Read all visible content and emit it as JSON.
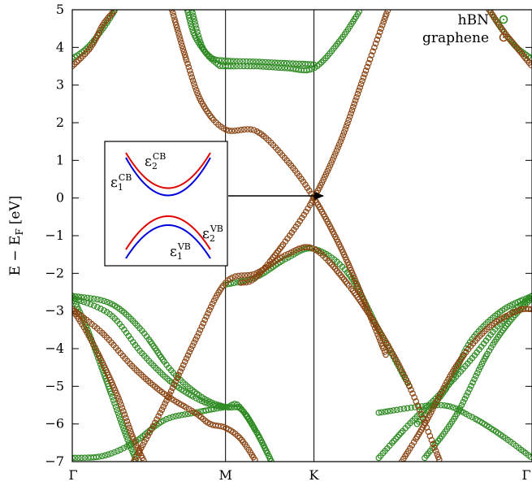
{
  "chart_data": {
    "type": "scatter",
    "ylabel": "E − E",
    "ylabel_sub": "F",
    "ylabel_unit": "[eV]",
    "ylim": [
      -7,
      5
    ],
    "yticks": [
      5,
      4,
      3,
      2,
      1,
      0,
      -1,
      -2,
      -3,
      -4,
      -5,
      -6,
      -7
    ],
    "xlim": [
      0,
      3
    ],
    "xticks": [
      {
        "label": "Γ",
        "x": 0
      },
      {
        "label": "M",
        "x": 1
      },
      {
        "label": "K",
        "x": 1.577
      },
      {
        "label": "Γ",
        "x": 3
      }
    ],
    "legend_position": "top-right",
    "colors": {
      "hBN": "#2e8b22",
      "graphene": "#8b4513",
      "inset_upper": "#e00000",
      "inset_lower": "#0000dd"
    },
    "series": [
      {
        "name": "hBN",
        "bands": [
          {
            "x": [
              0,
              0.25,
              0.45,
              0.65,
              0.85,
              1.0,
              1.1,
              1.2,
              1.3
            ],
            "y": [
              -2.6,
              -2.8,
              -3.5,
              -4.6,
              -5.3,
              -5.55,
              -5.6,
              -6.2,
              -7.0
            ]
          },
          {
            "x": [
              0,
              0.25,
              0.45,
              0.65,
              0.85,
              1.0,
              1.08,
              1.2,
              1.3
            ],
            "y": [
              -2.65,
              -3.1,
              -4.1,
              -4.9,
              -5.4,
              -5.55,
              -5.5,
              -6.2,
              -7.0
            ]
          },
          {
            "x": [
              0,
              0.1,
              0.2,
              0.28,
              0.35,
              0.42
            ],
            "y": [
              -2.6,
              -3.5,
              -4.6,
              -5.5,
              -6.3,
              -7.0
            ]
          },
          {
            "x": [
              0,
              0.2,
              0.4,
              0.6,
              0.8,
              1.0
            ],
            "y": [
              -6.9,
              -6.85,
              -6.5,
              -5.9,
              -5.7,
              -5.55
            ]
          },
          {
            "x": [
              1.0,
              1.2,
              1.4,
              1.577,
              1.8,
              2.0,
              2.2
            ],
            "y": [
              -2.3,
              -2.1,
              -1.6,
              -1.35,
              -2.0,
              -3.5,
              -5.0
            ]
          },
          {
            "x": [
              0.75,
              0.8,
              0.9,
              1.0,
              1.2,
              1.4,
              1.577
            ],
            "y": [
              5.0,
              4.3,
              3.75,
              3.65,
              3.62,
              3.58,
              3.55
            ]
          },
          {
            "x": [
              0.78,
              0.85,
              0.95,
              1.0,
              1.2,
              1.4,
              1.577,
              1.75,
              1.88
            ],
            "y": [
              5.0,
              4.0,
              3.55,
              3.5,
              3.5,
              3.45,
              3.45,
              4.2,
              5.0
            ]
          },
          {
            "x": [
              0,
              0.1,
              0.2,
              0.28
            ],
            "y": [
              3.7,
              4.0,
              4.5,
              5.0
            ]
          },
          {
            "x": [
              2.72,
              2.8,
              2.9,
              3.0
            ],
            "y": [
              5.0,
              4.5,
              4.0,
              3.7
            ]
          },
          {
            "x": [
              2.0,
              2.2,
              2.4,
              2.6,
              2.8,
              3.0
            ],
            "y": [
              -6.9,
              -6.0,
              -5.2,
              -4.3,
              -3.3,
              -2.6
            ]
          },
          {
            "x": [
              2.3,
              2.5,
              2.7,
              2.85,
              3.0
            ],
            "y": [
              -6.9,
              -5.8,
              -4.2,
              -3.3,
              -2.65
            ]
          },
          {
            "x": [
              2.25,
              2.45,
              2.6,
              2.8,
              3.0
            ],
            "y": [
              -6.0,
              -5.0,
              -3.8,
              -3.0,
              -2.6
            ]
          },
          {
            "x": [
              2.0,
              2.4,
              2.6,
              2.8,
              3.0
            ],
            "y": [
              -5.7,
              -5.5,
              -5.8,
              -6.3,
              -6.9
            ]
          }
        ]
      },
      {
        "name": "graphene",
        "bands": [
          {
            "x": [
              0.65,
              0.75,
              0.85,
              1.0,
              1.2,
              1.4,
              1.577,
              1.75,
              1.9,
              2.05
            ],
            "y": [
              5.0,
              3.6,
              2.5,
              1.82,
              1.78,
              1.0,
              0.0,
              -1.3,
              -2.7,
              -4.2
            ]
          },
          {
            "x": [
              1.1,
              1.2,
              1.4,
              1.577,
              1.75,
              1.9,
              2.06
            ],
            "y": [
              -2.25,
              -2.1,
              -1.1,
              0.0,
              1.5,
              3.2,
              5.0
            ]
          },
          {
            "x": [
              0,
              0.2,
              0.4,
              0.6,
              0.8,
              0.9,
              1.0,
              1.1,
              1.2
            ],
            "y": [
              -2.95,
              -3.6,
              -4.5,
              -5.2,
              -5.7,
              -6.0,
              -6.1,
              -6.4,
              -7.0
            ]
          },
          {
            "x": [
              0,
              0.1,
              0.2,
              0.3,
              0.4,
              0.47
            ],
            "y": [
              -2.95,
              -3.6,
              -4.4,
              -5.3,
              -6.4,
              -7.0
            ]
          },
          {
            "x": [
              0.4,
              0.6,
              0.8,
              1.0,
              1.2,
              1.4,
              1.577,
              1.8,
              2.0,
              2.2,
              2.4
            ],
            "y": [
              -7.0,
              -5.5,
              -3.8,
              -2.25,
              -2.0,
              -1.5,
              -1.35,
              -2.3,
              -3.5,
              -5.0,
              -7.0
            ]
          },
          {
            "x": [
              2.15,
              2.3,
              2.5,
              2.7,
              2.9,
              3.0
            ],
            "y": [
              -7.0,
              -6.0,
              -4.5,
              -3.5,
              -3.0,
              -2.95
            ]
          },
          {
            "x": [
              0,
              0.12,
              0.2,
              0.28
            ],
            "y": [
              3.5,
              4.0,
              4.6,
              5.0
            ]
          },
          {
            "x": [
              2.72,
              2.82,
              2.9,
              3.0
            ],
            "y": [
              5.0,
              4.4,
              4.0,
              3.5
            ]
          }
        ]
      }
    ],
    "inset": {
      "labels": [
        {
          "base": "ε",
          "sub": "1",
          "sup": "CB"
        },
        {
          "base": "ε",
          "sub": "2",
          "sup": "CB"
        },
        {
          "base": "ε",
          "sub": "2",
          "sup": "VB"
        },
        {
          "base": "ε",
          "sub": "1",
          "sup": "VB"
        }
      ]
    }
  }
}
